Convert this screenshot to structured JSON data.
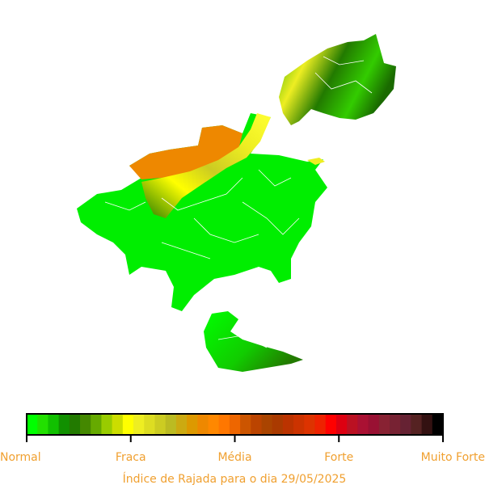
{
  "legend": {
    "labels": [
      "Normal",
      "Fraca",
      "Média",
      "Forte",
      "Muito Forte"
    ],
    "colors": [
      "#00ff00",
      "#22e000",
      "#11c000",
      "#119000",
      "#227a00",
      "#448800",
      "#66aa00",
      "#99cc00",
      "#ccdd00",
      "#ffff00",
      "#eeee22",
      "#dddd22",
      "#cccc22",
      "#bbbb22",
      "#ccaa11",
      "#dd9900",
      "#ee8800",
      "#ff8800",
      "#ff7700",
      "#ee6600",
      "#cc5500",
      "#bb4400",
      "#aa4400",
      "#aa3a00",
      "#bb3300",
      "#cc3300",
      "#dd3300",
      "#ee2200",
      "#ff0000",
      "#dd0011",
      "#bb1122",
      "#aa1133",
      "#991133",
      "#882233",
      "#772233",
      "#662233",
      "#552222",
      "#331111",
      "#000000"
    ]
  },
  "caption": "Índice de Rajada para o dia 29/05/2025"
}
